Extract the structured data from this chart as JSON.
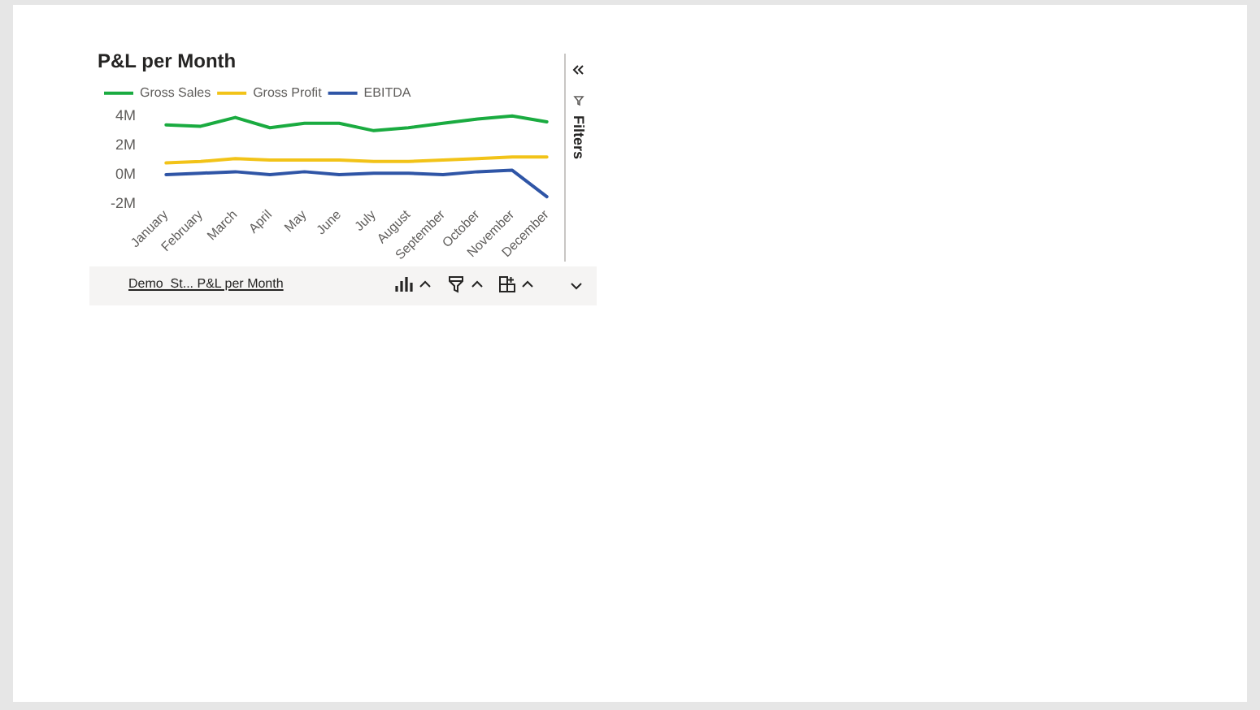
{
  "chart_data": {
    "type": "line",
    "title": "P&L per Month",
    "categories": [
      "January",
      "February",
      "March",
      "April",
      "May",
      "June",
      "July",
      "August",
      "September",
      "October",
      "November",
      "December"
    ],
    "series": [
      {
        "name": "Gross Sales",
        "color": "#1aab40",
        "values": [
          3400000,
          3300000,
          3900000,
          3200000,
          3500000,
          3500000,
          3000000,
          3200000,
          3500000,
          3800000,
          4000000,
          3600000
        ]
      },
      {
        "name": "Gross Profit",
        "color": "#f2c318",
        "values": [
          800000,
          900000,
          1100000,
          1000000,
          1000000,
          1000000,
          900000,
          900000,
          1000000,
          1100000,
          1200000,
          1200000
        ]
      },
      {
        "name": "EBITDA",
        "color": "#2f55a6",
        "values": [
          0,
          100000,
          200000,
          0,
          200000,
          0,
          100000,
          100000,
          0,
          200000,
          300000,
          -1500000
        ]
      }
    ],
    "ylim": [
      -2000000,
      4000000
    ],
    "yticks": [
      {
        "value": -2000000,
        "label": "-2M"
      },
      {
        "value": 0,
        "label": "0M"
      },
      {
        "value": 2000000,
        "label": "2M"
      },
      {
        "value": 4000000,
        "label": "4M"
      }
    ],
    "legend": "top left",
    "marker": "none",
    "annotations": [
      "Demo_St... P&L per Month",
      "Filters"
    ]
  }
}
